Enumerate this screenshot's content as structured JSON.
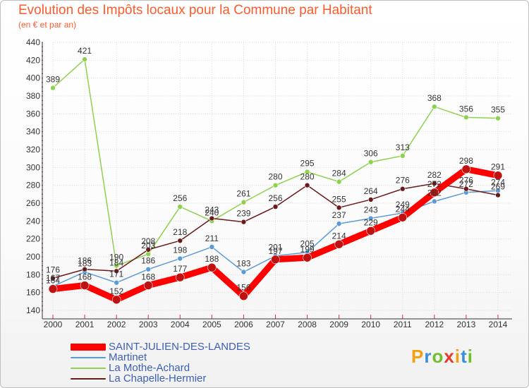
{
  "title": "Evolution des Impôts locaux pour la Commune par Habitant",
  "subtitle": "(en € et par an)",
  "logo_letters": [
    {
      "ch": "P",
      "color": "#f0a010"
    },
    {
      "ch": "r",
      "color": "#3a8fd8"
    },
    {
      "ch": "o",
      "color": "#6fbf2a"
    },
    {
      "ch": "x",
      "color": "#e83a2a"
    },
    {
      "ch": "i",
      "color": "#f0a010"
    },
    {
      "ch": "t",
      "color": "#3a8fd8"
    },
    {
      "ch": "i",
      "color": "#6fbf2a"
    }
  ],
  "chart_data": {
    "type": "line",
    "title": "Evolution des Impôts locaux pour la Commune par Habitant",
    "subtitle": "(en € et par an)",
    "x": [
      "2000",
      "2001",
      "2002",
      "2003",
      "2004",
      "2005",
      "2006",
      "2007",
      "2008",
      "2009",
      "2010",
      "2011",
      "2012",
      "2013",
      "2014"
    ],
    "ylim": [
      140,
      440
    ],
    "yticks": [
      140,
      160,
      180,
      200,
      220,
      240,
      260,
      280,
      300,
      320,
      340,
      360,
      380,
      400,
      420,
      440
    ],
    "grid": true,
    "legend_position": "bottom-left",
    "series": [
      {
        "name": "SAINT-JULIEN-DES-LANDES",
        "color": "#ff0000",
        "width": 9,
        "values": [
          164,
          168,
          152,
          168,
          177,
          188,
          156,
          197,
          199,
          214,
          229,
          244,
          272,
          298,
          291
        ]
      },
      {
        "name": "Martinet",
        "color": "#5b9bd5",
        "width": 1.5,
        "values": [
          167,
          183,
          171,
          186,
          198,
          211,
          183,
          201,
          205,
          237,
          243,
          249,
          262,
          272,
          274
        ]
      },
      {
        "name": "La Mothe-Achard",
        "color": "#8fd14f",
        "width": 1.5,
        "values": [
          389,
          421,
          190,
          203,
          256,
          240,
          261,
          280,
          295,
          284,
          306,
          313,
          368,
          356,
          355
        ]
      },
      {
        "name": "La Chapelle-Hermier",
        "color": "#6b1a1a",
        "width": 1.5,
        "values": [
          176,
          186,
          184,
          208,
          218,
          243,
          239,
          256,
          280,
          255,
          264,
          276,
          282,
          276,
          269
        ]
      }
    ]
  }
}
